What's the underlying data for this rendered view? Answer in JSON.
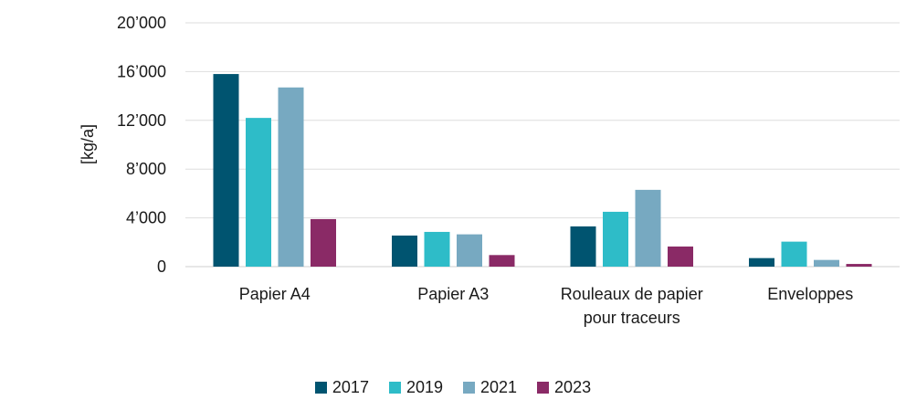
{
  "chart_data": {
    "type": "bar",
    "ylabel": "[kg/a]",
    "ylim": [
      0,
      20000
    ],
    "yticks": [
      0,
      4000,
      8000,
      12000,
      16000,
      20000
    ],
    "ytick_labels": [
      "0",
      "4’000",
      "8’000",
      "12’000",
      "16’000",
      "20’000"
    ],
    "grid": true,
    "legend_position": "bottom",
    "categories": [
      [
        "Papier A4"
      ],
      [
        "Papier A3"
      ],
      [
        "Rouleaux de papier",
        "pour traceurs"
      ],
      [
        "Enveloppes"
      ]
    ],
    "series": [
      {
        "name": "2017",
        "color": "#005470",
        "values": [
          15800,
          2550,
          3300,
          700
        ]
      },
      {
        "name": "2019",
        "color": "#2ebcc8",
        "values": [
          12200,
          2850,
          4500,
          2050
        ]
      },
      {
        "name": "2021",
        "color": "#77a9c1",
        "values": [
          14700,
          2650,
          6300,
          550
        ]
      },
      {
        "name": "2023",
        "color": "#8a2a66",
        "values": [
          3900,
          950,
          1650,
          220
        ]
      }
    ]
  }
}
